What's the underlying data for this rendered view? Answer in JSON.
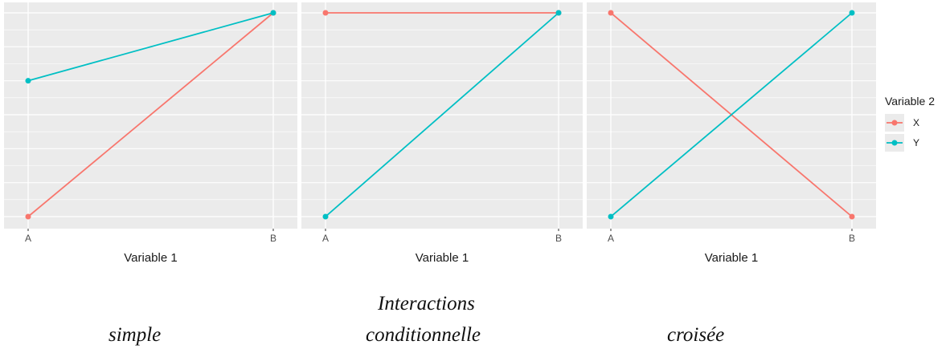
{
  "chart_data": [
    {
      "type": "line",
      "categories": [
        "A",
        "B"
      ],
      "xlabel": "Variable 1",
      "ylabel": "",
      "ylim": [
        0,
        6
      ],
      "grid": true,
      "series": [
        {
          "name": "X",
          "values": [
            0,
            6
          ]
        },
        {
          "name": "Y",
          "values": [
            4,
            6
          ]
        }
      ]
    },
    {
      "type": "line",
      "categories": [
        "A",
        "B"
      ],
      "xlabel": "Variable 1",
      "ylabel": "",
      "ylim": [
        0,
        6
      ],
      "grid": true,
      "series": [
        {
          "name": "X",
          "values": [
            6,
            6
          ]
        },
        {
          "name": "Y",
          "values": [
            0,
            6
          ]
        }
      ]
    },
    {
      "type": "line",
      "categories": [
        "A",
        "B"
      ],
      "xlabel": "Variable 1",
      "ylabel": "",
      "ylim": [
        0,
        6
      ],
      "grid": true,
      "series": [
        {
          "name": "X",
          "values": [
            6,
            0
          ]
        },
        {
          "name": "Y",
          "values": [
            0,
            6
          ]
        }
      ]
    }
  ],
  "legend": {
    "title": "Variable 2",
    "placement": "right",
    "items": [
      {
        "label": "X",
        "color": "#F8766D"
      },
      {
        "label": "Y",
        "color": "#00BFC4"
      }
    ]
  },
  "colors": {
    "X": "#F8766D",
    "Y": "#00BFC4",
    "panel_background": "#EBEBEB",
    "grid": "#FFFFFF"
  },
  "captions": {
    "heading": "Interactions",
    "simple": "simple",
    "conditionnelle": "conditionnelle",
    "croisee": "croisée"
  }
}
